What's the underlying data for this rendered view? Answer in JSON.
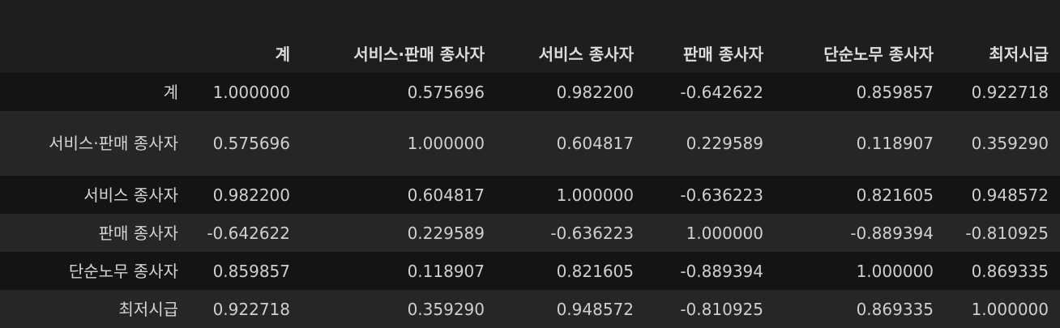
{
  "table": {
    "columns": [
      "계",
      "서비스·판매 종사자",
      "서비스 종사자",
      "판매 종사자",
      "단순노무 종사자",
      "최저시급"
    ],
    "rows": [
      {
        "label": "계",
        "values": [
          "1.000000",
          "0.575696",
          "0.982200",
          "-0.642622",
          "0.859857",
          "0.922718"
        ]
      },
      {
        "label": "서비스·판매 종사자",
        "values": [
          "0.575696",
          "1.000000",
          "0.604817",
          "0.229589",
          "0.118907",
          "0.359290"
        ]
      },
      {
        "label": "서비스 종사자",
        "values": [
          "0.982200",
          "0.604817",
          "1.000000",
          "-0.636223",
          "0.821605",
          "0.948572"
        ]
      },
      {
        "label": "판매 종사자",
        "values": [
          "-0.642622",
          "0.229589",
          "-0.636223",
          "1.000000",
          "-0.889394",
          "-0.810925"
        ]
      },
      {
        "label": "단순노무 종사자",
        "values": [
          "0.859857",
          "0.118907",
          "0.821605",
          "-0.889394",
          "1.000000",
          "0.869335"
        ]
      },
      {
        "label": "최저시급",
        "values": [
          "0.922718",
          "0.359290",
          "0.948572",
          "-0.810925",
          "0.869335",
          "1.000000"
        ]
      }
    ]
  }
}
